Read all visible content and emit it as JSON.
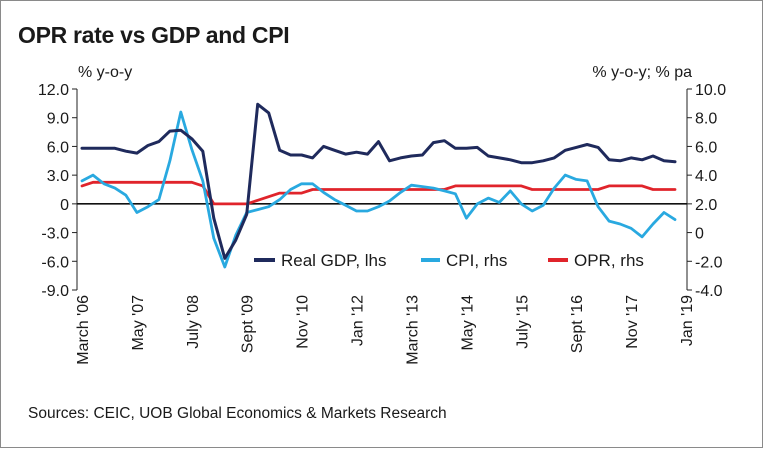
{
  "title": "OPR rate vs GDP and CPI",
  "source": "Sources: CEIC, UOB Global Economics & Markets Research",
  "chart_data": {
    "type": "line",
    "title": "OPR rate vs GDP and CPI",
    "y_left_label": "% y-o-y",
    "y_right_label": "% y-o-y; % pa",
    "ylim_left": [
      -9,
      12
    ],
    "ylim_right": [
      -4,
      10
    ],
    "yticks_left": [
      "12.0",
      "9.0",
      "6.0",
      "3.0",
      "0",
      "-3.0",
      "-6.0",
      "-9.0"
    ],
    "yticks_right": [
      "10.0",
      "8.0",
      "6.0",
      "4.0",
      "2.0",
      "0",
      "-2.0",
      "-4.0"
    ],
    "x_categories": [
      "March '06",
      "May '07",
      "July '08",
      "Sept '09",
      "Nov '10",
      "Jan '12",
      "March '13",
      "May '14",
      "July '15",
      "Sept '16",
      "Nov '17",
      "Jan '19"
    ],
    "x_range": [
      "2006Q1",
      "2019Q3"
    ],
    "grid": false,
    "legend_position": "bottom-center",
    "series": [
      {
        "name": "Real GDP, lhs",
        "axis": "left",
        "color": "#1f2a5c",
        "x": [
          "2006Q1",
          "2006Q2",
          "2006Q3",
          "2006Q4",
          "2007Q1",
          "2007Q2",
          "2007Q3",
          "2007Q4",
          "2008Q1",
          "2008Q2",
          "2008Q3",
          "2008Q4",
          "2009Q1",
          "2009Q2",
          "2009Q3",
          "2009Q4",
          "2010Q1",
          "2010Q2",
          "2010Q3",
          "2010Q4",
          "2011Q1",
          "2011Q2",
          "2011Q3",
          "2011Q4",
          "2012Q1",
          "2012Q2",
          "2012Q3",
          "2012Q4",
          "2013Q1",
          "2013Q2",
          "2013Q3",
          "2013Q4",
          "2014Q1",
          "2014Q2",
          "2014Q3",
          "2014Q4",
          "2015Q1",
          "2015Q2",
          "2015Q3",
          "2015Q4",
          "2016Q1",
          "2016Q2",
          "2016Q3",
          "2016Q4",
          "2017Q1",
          "2017Q2",
          "2017Q3",
          "2017Q4",
          "2018Q1",
          "2018Q2",
          "2018Q3",
          "2018Q4",
          "2019Q1",
          "2019Q2",
          "2019Q3"
        ],
        "values": [
          5.8,
          5.8,
          5.8,
          5.8,
          5.5,
          5.3,
          6.1,
          6.5,
          7.6,
          7.7,
          6.8,
          5.5,
          -1.5,
          -5.7,
          -3.8,
          -1.1,
          10.4,
          9.5,
          5.6,
          5.1,
          5.1,
          4.8,
          6.0,
          5.6,
          5.2,
          5.4,
          5.2,
          6.5,
          4.5,
          4.8,
          5.0,
          5.1,
          6.4,
          6.6,
          5.8,
          5.8,
          5.9,
          5.0,
          4.8,
          4.6,
          4.3,
          4.3,
          4.5,
          4.8,
          5.6,
          5.9,
          6.2,
          5.9,
          4.6,
          4.5,
          4.8,
          4.6,
          5.0,
          4.5,
          4.4
        ]
      },
      {
        "name": "CPI, rhs",
        "axis": "right",
        "color": "#29a9e0",
        "x": [
          "2006Q1",
          "2006Q2",
          "2006Q3",
          "2006Q4",
          "2007Q1",
          "2007Q2",
          "2007Q3",
          "2007Q4",
          "2008Q1",
          "2008Q2",
          "2008Q3",
          "2008Q4",
          "2009Q1",
          "2009Q2",
          "2009Q3",
          "2009Q4",
          "2010Q1",
          "2010Q2",
          "2010Q3",
          "2010Q4",
          "2011Q1",
          "2011Q2",
          "2011Q3",
          "2011Q4",
          "2012Q1",
          "2012Q2",
          "2012Q3",
          "2012Q4",
          "2013Q1",
          "2013Q2",
          "2013Q3",
          "2013Q4",
          "2014Q1",
          "2014Q2",
          "2014Q3",
          "2014Q4",
          "2015Q1",
          "2015Q2",
          "2015Q3",
          "2015Q4",
          "2016Q1",
          "2016Q2",
          "2016Q3",
          "2016Q4",
          "2017Q1",
          "2017Q2",
          "2017Q3",
          "2017Q4",
          "2018Q1",
          "2018Q2",
          "2018Q3",
          "2018Q4",
          "2019Q1",
          "2019Q2",
          "2019Q3"
        ],
        "values": [
          3.6,
          4.0,
          3.4,
          3.1,
          2.6,
          1.4,
          1.8,
          2.3,
          5.0,
          8.4,
          5.8,
          3.6,
          -0.4,
          -2.4,
          -0.2,
          1.4,
          1.6,
          1.8,
          2.3,
          3.0,
          3.4,
          3.4,
          2.8,
          2.3,
          1.9,
          1.5,
          1.5,
          1.8,
          2.2,
          2.8,
          3.3,
          3.2,
          3.1,
          2.9,
          2.7,
          1.0,
          2.0,
          2.4,
          2.1,
          2.9,
          2.0,
          1.5,
          1.9,
          3.1,
          4.0,
          3.7,
          3.6,
          1.8,
          0.8,
          0.6,
          0.3,
          -0.3,
          0.6,
          1.4,
          0.9
        ]
      },
      {
        "name": "OPR, rhs",
        "axis": "right",
        "color": "#e0242b",
        "x": [
          "2006Q1",
          "2006Q2",
          "2006Q3",
          "2006Q4",
          "2007Q1",
          "2007Q2",
          "2007Q3",
          "2007Q4",
          "2008Q1",
          "2008Q2",
          "2008Q3",
          "2008Q4",
          "2009Q1",
          "2009Q2",
          "2009Q3",
          "2009Q4",
          "2010Q1",
          "2010Q2",
          "2010Q3",
          "2010Q4",
          "2011Q1",
          "2011Q2",
          "2011Q3",
          "2011Q4",
          "2012Q1",
          "2012Q2",
          "2012Q3",
          "2012Q4",
          "2013Q1",
          "2013Q2",
          "2013Q3",
          "2013Q4",
          "2014Q1",
          "2014Q2",
          "2014Q3",
          "2014Q4",
          "2015Q1",
          "2015Q2",
          "2015Q3",
          "2015Q4",
          "2016Q1",
          "2016Q2",
          "2016Q3",
          "2016Q4",
          "2017Q1",
          "2017Q2",
          "2017Q3",
          "2017Q4",
          "2018Q1",
          "2018Q2",
          "2018Q3",
          "2018Q4",
          "2019Q1",
          "2019Q2",
          "2019Q3"
        ],
        "values": [
          3.25,
          3.5,
          3.5,
          3.5,
          3.5,
          3.5,
          3.5,
          3.5,
          3.5,
          3.5,
          3.5,
          3.25,
          2.0,
          2.0,
          2.0,
          2.0,
          2.25,
          2.5,
          2.75,
          2.75,
          2.75,
          3.0,
          3.0,
          3.0,
          3.0,
          3.0,
          3.0,
          3.0,
          3.0,
          3.0,
          3.0,
          3.0,
          3.0,
          3.0,
          3.25,
          3.25,
          3.25,
          3.25,
          3.25,
          3.25,
          3.25,
          3.0,
          3.0,
          3.0,
          3.0,
          3.0,
          3.0,
          3.0,
          3.25,
          3.25,
          3.25,
          3.25,
          3.0,
          3.0,
          3.0
        ]
      }
    ]
  }
}
